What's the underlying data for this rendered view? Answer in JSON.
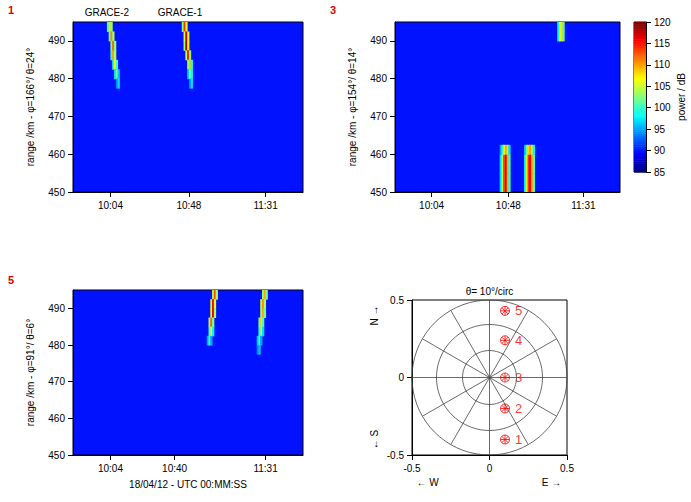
{
  "chart_data": [
    {
      "type": "heatmap",
      "panel": "1",
      "ylabel": "range /km - φ=166°/ θ=24°",
      "xlim": [
        583,
        712
      ],
      "xticks": [
        {
          "value": 604,
          "label": "10:04"
        },
        {
          "value": 648,
          "label": "10:48"
        },
        {
          "value": 691,
          "label": "11:31"
        }
      ],
      "ylim": [
        450,
        495
      ],
      "yticks": [
        450,
        460,
        470,
        480,
        490
      ],
      "background": 90,
      "cell_width": 1,
      "cell_height": 2.5,
      "annotations": [
        {
          "text": "GRACE-2",
          "x": 602
        },
        {
          "text": "GRACE-1",
          "x": 643
        }
      ],
      "cells": [
        [
          602,
          492.5,
          100
        ],
        [
          603,
          492.5,
          108
        ],
        [
          604,
          492.5,
          103
        ],
        [
          603,
          490,
          102
        ],
        [
          604,
          490,
          111
        ],
        [
          605,
          490,
          104
        ],
        [
          604,
          487.5,
          103
        ],
        [
          605,
          487.5,
          112
        ],
        [
          606,
          487.5,
          103
        ],
        [
          604,
          485,
          100
        ],
        [
          605,
          485,
          110
        ],
        [
          606,
          485,
          104
        ],
        [
          605,
          482.5,
          99
        ],
        [
          606,
          482.5,
          106
        ],
        [
          607,
          482.5,
          100
        ],
        [
          606,
          480,
          97
        ],
        [
          607,
          480,
          102
        ],
        [
          608,
          480,
          96
        ],
        [
          607,
          477.5,
          94
        ],
        [
          608,
          477.5,
          97
        ],
        [
          644,
          492.5,
          103
        ],
        [
          645,
          492.5,
          114
        ],
        [
          646,
          492.5,
          106
        ],
        [
          645,
          490,
          106
        ],
        [
          646,
          490,
          117
        ],
        [
          647,
          490,
          105
        ],
        [
          645,
          487.5,
          104
        ],
        [
          646,
          487.5,
          118
        ],
        [
          647,
          487.5,
          107
        ],
        [
          646,
          485,
          105
        ],
        [
          647,
          485,
          115
        ],
        [
          648,
          485,
          103
        ],
        [
          647,
          482.5,
          103
        ],
        [
          648,
          482.5,
          109
        ],
        [
          649,
          482.5,
          99
        ],
        [
          647,
          480,
          96
        ],
        [
          648,
          480,
          102
        ],
        [
          649,
          480,
          98
        ],
        [
          648,
          477.5,
          94
        ],
        [
          649,
          477.5,
          97
        ]
      ]
    },
    {
      "type": "heatmap",
      "panel": "3",
      "ylabel": "range /km - φ=154°/ θ=14°",
      "xlim": [
        583,
        712
      ],
      "xticks": [
        {
          "value": 604,
          "label": "10:04"
        },
        {
          "value": 648,
          "label": "10:48"
        },
        {
          "value": 691,
          "label": "11:31"
        }
      ],
      "ylim": [
        450,
        495
      ],
      "yticks": [
        450,
        460,
        470,
        480,
        490
      ],
      "background": 90,
      "cell_width": 1,
      "cell_height": 2.5,
      "cells": [
        [
          643,
          450,
          97
        ],
        [
          644,
          450,
          104
        ],
        [
          645,
          450,
          113
        ],
        [
          646,
          450,
          117
        ],
        [
          647,
          450,
          110
        ],
        [
          648,
          450,
          100
        ],
        [
          643,
          452.5,
          97
        ],
        [
          644,
          452.5,
          104
        ],
        [
          645,
          452.5,
          113
        ],
        [
          646,
          452.5,
          117
        ],
        [
          647,
          452.5,
          110
        ],
        [
          648,
          452.5,
          100
        ],
        [
          643,
          455,
          97
        ],
        [
          644,
          455,
          104
        ],
        [
          645,
          455,
          113
        ],
        [
          646,
          455,
          117
        ],
        [
          647,
          455,
          110
        ],
        [
          648,
          455,
          100
        ],
        [
          643,
          457.5,
          97
        ],
        [
          644,
          457.5,
          104
        ],
        [
          645,
          457.5,
          113
        ],
        [
          646,
          457.5,
          117
        ],
        [
          647,
          457.5,
          110
        ],
        [
          648,
          457.5,
          100
        ],
        [
          643,
          460,
          95
        ],
        [
          644,
          460,
          100
        ],
        [
          645,
          460,
          107
        ],
        [
          646,
          460,
          110
        ],
        [
          647,
          460,
          104
        ],
        [
          648,
          460,
          97
        ],
        [
          657,
          450,
          98
        ],
        [
          658,
          450,
          106
        ],
        [
          659,
          450,
          114
        ],
        [
          660,
          450,
          116
        ],
        [
          661,
          450,
          110
        ],
        [
          662,
          450,
          101
        ],
        [
          657,
          452.5,
          98
        ],
        [
          658,
          452.5,
          106
        ],
        [
          659,
          452.5,
          114
        ],
        [
          660,
          452.5,
          116
        ],
        [
          661,
          452.5,
          110
        ],
        [
          662,
          452.5,
          101
        ],
        [
          657,
          455,
          98
        ],
        [
          658,
          455,
          106
        ],
        [
          659,
          455,
          114
        ],
        [
          660,
          455,
          116
        ],
        [
          661,
          455,
          110
        ],
        [
          662,
          455,
          101
        ],
        [
          657,
          457.5,
          98
        ],
        [
          658,
          457.5,
          106
        ],
        [
          659,
          457.5,
          114
        ],
        [
          660,
          457.5,
          116
        ],
        [
          661,
          457.5,
          110
        ],
        [
          662,
          457.5,
          101
        ],
        [
          657,
          460,
          96
        ],
        [
          658,
          460,
          102
        ],
        [
          659,
          460,
          108
        ],
        [
          660,
          460,
          110
        ],
        [
          661,
          460,
          104
        ],
        [
          662,
          460,
          98
        ],
        [
          676,
          490,
          98
        ],
        [
          677,
          490,
          106
        ],
        [
          678,
          490,
          108
        ],
        [
          679,
          490,
          101
        ],
        [
          676,
          492.5,
          98
        ],
        [
          677,
          492.5,
          106
        ],
        [
          678,
          492.5,
          108
        ],
        [
          679,
          492.5,
          101
        ]
      ]
    },
    {
      "type": "heatmap",
      "panel": "5",
      "ylabel": "range /km - φ=91°/ θ=6°",
      "xlabel": "18/04/12 - UTC 00:MM:SS",
      "xlim": [
        583,
        712
      ],
      "xticks": [
        {
          "value": 604,
          "label": "10:04"
        },
        {
          "value": 640,
          "label": "10:40"
        },
        {
          "value": 691,
          "label": "11:31"
        }
      ],
      "ylim": [
        450,
        495
      ],
      "yticks": [
        450,
        460,
        470,
        480,
        490
      ],
      "background": 90,
      "cell_width": 1,
      "cell_height": 2.5,
      "cells": [
        [
          661,
          492.5,
          104
        ],
        [
          662,
          492.5,
          113
        ],
        [
          663,
          492.5,
          104
        ],
        [
          660,
          490,
          105
        ],
        [
          661,
          490,
          116
        ],
        [
          662,
          490,
          106
        ],
        [
          660,
          487.5,
          106
        ],
        [
          661,
          487.5,
          117
        ],
        [
          662,
          487.5,
          104
        ],
        [
          659,
          485,
          104
        ],
        [
          660,
          485,
          112
        ],
        [
          661,
          485,
          103
        ],
        [
          659,
          482.5,
          100
        ],
        [
          660,
          482.5,
          106
        ],
        [
          661,
          482.5,
          98
        ],
        [
          658,
          480,
          95
        ],
        [
          659,
          480,
          100
        ],
        [
          660,
          480,
          95
        ],
        [
          689,
          492.5,
          103
        ],
        [
          690,
          492.5,
          110
        ],
        [
          691,
          492.5,
          102
        ],
        [
          688,
          490,
          104
        ],
        [
          689,
          490,
          111
        ],
        [
          690,
          490,
          104
        ],
        [
          688,
          487.5,
          103
        ],
        [
          689,
          487.5,
          110
        ],
        [
          690,
          487.5,
          102
        ],
        [
          687,
          485,
          102
        ],
        [
          688,
          485,
          108
        ],
        [
          689,
          485,
          101
        ],
        [
          687,
          482.5,
          99
        ],
        [
          688,
          482.5,
          104
        ],
        [
          689,
          482.5,
          97
        ],
        [
          686,
          480,
          96
        ],
        [
          687,
          480,
          100
        ],
        [
          688,
          480,
          95
        ],
        [
          686,
          477.5,
          94
        ],
        [
          687,
          477.5,
          96
        ]
      ]
    },
    {
      "type": "scatter",
      "title": "θ= 10°/circ",
      "xlim": [
        -0.5,
        0.5
      ],
      "xticks": [
        -0.5,
        0,
        0.5
      ],
      "ylim": [
        -0.5,
        0.5
      ],
      "yticks": [
        -0.5,
        0,
        0.5
      ],
      "circles": [
        0.174,
        0.342,
        0.5
      ],
      "rays": [
        0,
        30,
        60,
        90,
        120,
        150,
        180,
        210,
        240,
        270,
        300,
        330
      ],
      "marker": "asterisk",
      "color": "#ff0000",
      "points": [
        {
          "label": "1",
          "x": 0.1,
          "y": -0.4
        },
        {
          "label": "2",
          "x": 0.1,
          "y": -0.2
        },
        {
          "label": "3",
          "x": 0.1,
          "y": 0
        },
        {
          "label": "4",
          "x": 0.1,
          "y": 0.24
        },
        {
          "label": "5",
          "x": 0.1,
          "y": 0.43
        }
      ],
      "annotations": [
        {
          "text": "N →",
          "side": "y",
          "at": 0.4
        },
        {
          "text": "← S",
          "side": "y",
          "at": -0.4
        },
        {
          "text": "← W",
          "side": "x",
          "at": -0.4
        },
        {
          "text": "E →",
          "side": "x",
          "at": 0.4
        }
      ]
    }
  ],
  "colorbar": {
    "label": "power / dB",
    "range": [
      85,
      120
    ],
    "ticks": [
      85,
      90,
      95,
      100,
      105,
      110,
      115,
      120
    ]
  }
}
